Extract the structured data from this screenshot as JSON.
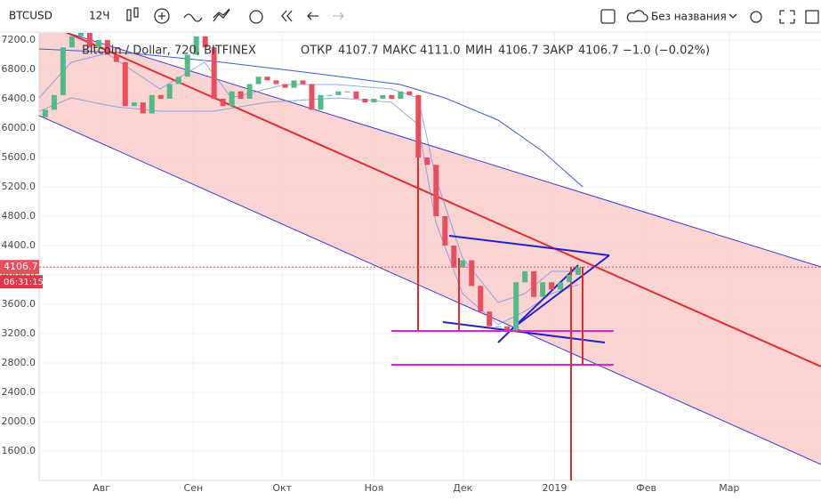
{
  "toolbar": {
    "symbol": "BTCUSD",
    "interval": "12Ч",
    "layout_name": "Без названия"
  },
  "legend": {
    "title": "Bitcoin / Dollar, 720, BITFINEX",
    "open_label": "ОТКР",
    "open": "4107.7",
    "high_label": "МАКС",
    "high": "4111.0",
    "low_label": "МИН",
    "low": "4106.7",
    "close_label": "ЗАКР",
    "close": "4106.7",
    "change": "−1.0 (−0.02%)"
  },
  "chart_data": {
    "type": "candlestick",
    "up_color": "#53b987",
    "down_color": "#eb4d5c",
    "last_price": {
      "value": 4106.7,
      "label": "4106.7"
    },
    "countdown": "06:31:15",
    "ylim": [
      1200,
      7321
    ],
    "xlim": [
      0,
      274
    ],
    "yticks": [
      {
        "value": 7200,
        "label": "7200.0"
      },
      {
        "value": 6800,
        "label": "6800.0"
      },
      {
        "value": 6400,
        "label": "6400.0"
      },
      {
        "value": 6000,
        "label": "6000.0"
      },
      {
        "value": 5600,
        "label": "5600.0"
      },
      {
        "value": 5200,
        "label": "5200.0"
      },
      {
        "value": 4800,
        "label": "4800.0"
      },
      {
        "value": 4400,
        "label": "4400.0"
      },
      {
        "value": 4000,
        "label": "4000.0"
      },
      {
        "value": 3600,
        "label": "3600.0"
      },
      {
        "value": 3200,
        "label": "3200.0"
      },
      {
        "value": 2800,
        "label": "2800.0"
      },
      {
        "value": 2400,
        "label": "2400.0"
      },
      {
        "value": 2000,
        "label": "2000.0"
      },
      {
        "value": 1600,
        "label": "1600.0"
      }
    ],
    "xticks": [
      {
        "value": 31,
        "label": "Авг"
      },
      {
        "value": 62,
        "label": "Сен"
      },
      {
        "value": 92,
        "label": "Окт"
      },
      {
        "value": 123,
        "label": "Ноя"
      },
      {
        "value": 153,
        "label": "Дек"
      },
      {
        "value": 184,
        "label": "2019"
      },
      {
        "value": 215,
        "label": "Фев"
      },
      {
        "value": 243,
        "label": "Мар"
      }
    ],
    "x": [
      12,
      15,
      18,
      21,
      24,
      27,
      30,
      33,
      36,
      39,
      42,
      45,
      48,
      51,
      54,
      57,
      60,
      63,
      66,
      69,
      72,
      75,
      78,
      81,
      84,
      87,
      90,
      93,
      96,
      99,
      102,
      105,
      108,
      111,
      114,
      117,
      120,
      123,
      126,
      129,
      132,
      135,
      138,
      141,
      144,
      147,
      150,
      153,
      156,
      159,
      162,
      165,
      168,
      171,
      174,
      177,
      180,
      183,
      186,
      189,
      192
    ],
    "open": [
      6150,
      6250,
      6450,
      7100,
      7250,
      7300,
      7100,
      7200,
      7000,
      6900,
      6300,
      6350,
      6200,
      6450,
      6400,
      6600,
      6700,
      7000,
      7250,
      7100,
      6400,
      6300,
      6500,
      6400,
      6600,
      6700,
      6650,
      6600,
      6550,
      6650,
      6600,
      6250,
      6450,
      6450,
      6500,
      6500,
      6400,
      6350,
      6400,
      6450,
      6400,
      6500,
      6450,
      5600,
      5500,
      4800,
      4400,
      4100,
      4200,
      3850,
      3500,
      3300,
      3300,
      3250,
      3900,
      4050,
      3700,
      3900,
      3800,
      3900,
      4000
    ],
    "close": [
      6250,
      6450,
      7100,
      7250,
      7300,
      7100,
      7200,
      7000,
      6900,
      6300,
      6350,
      6200,
      6450,
      6400,
      6600,
      6700,
      7000,
      7250,
      7100,
      6400,
      6300,
      6500,
      6400,
      6600,
      6700,
      6650,
      6600,
      6550,
      6650,
      6600,
      6250,
      6450,
      6450,
      6500,
      6500,
      6400,
      6350,
      6400,
      6450,
      6400,
      6500,
      6450,
      5600,
      5500,
      4800,
      4400,
      4100,
      4200,
      3850,
      3500,
      3300,
      3300,
      3250,
      3900,
      4050,
      3700,
      3900,
      3800,
      3900,
      4000,
      4107
    ]
  }
}
